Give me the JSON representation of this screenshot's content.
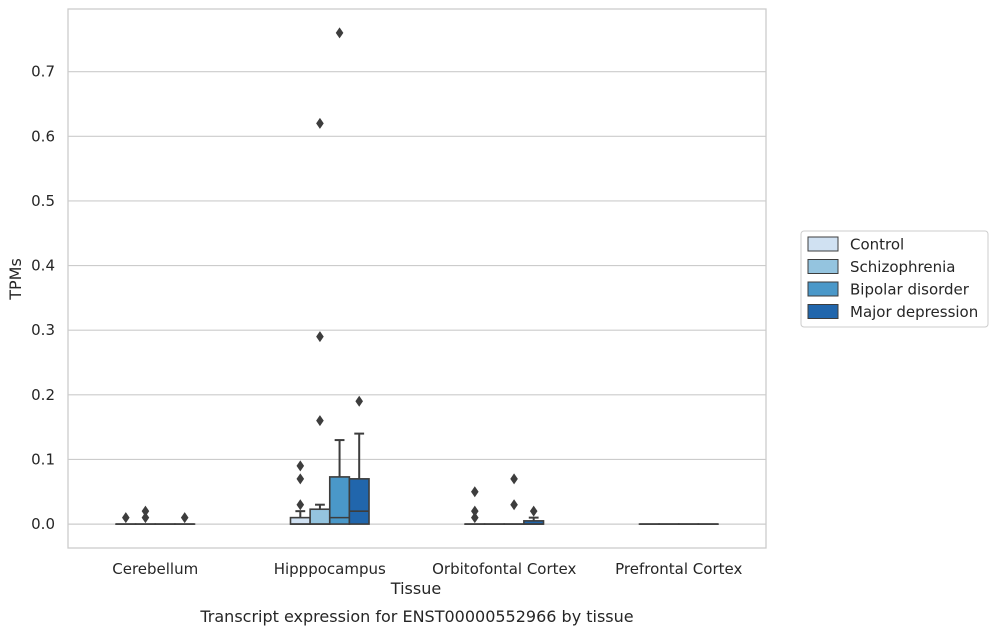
{
  "chart_data": {
    "type": "box",
    "title": "",
    "caption": "Transcript expression for ENST00000552966 by tissue",
    "xlabel": "Tissue",
    "ylabel": "TPMs",
    "ylim": [
      -0.037,
      0.797
    ],
    "yticks": [
      0.0,
      0.1,
      0.2,
      0.3,
      0.4,
      0.5,
      0.6,
      0.7
    ],
    "ytick_labels": [
      "0.0",
      "0.1",
      "0.2",
      "0.3",
      "0.4",
      "0.5",
      "0.6",
      "0.7"
    ],
    "grid": "horizontal",
    "legend_position": "right",
    "categories": [
      "Cerebellum",
      "Hipppocampus",
      "Orbitofontal Cortex",
      "Prefrontal Cortex"
    ],
    "series": [
      {
        "name": "Control",
        "color": "#d0e1f2",
        "boxes": [
          {
            "q1": 0,
            "median": 0,
            "q3": 0,
            "whisker_low": 0,
            "whisker_high": 0,
            "outliers": [
              0.01
            ]
          },
          {
            "q1": 0,
            "median": 0,
            "q3": 0.01,
            "whisker_low": 0,
            "whisker_high": 0.02,
            "outliers": [
              0.03,
              0.07,
              0.09
            ]
          },
          {
            "q1": 0,
            "median": 0,
            "q3": 0,
            "whisker_low": 0,
            "whisker_high": 0,
            "outliers": [
              0.01,
              0.02,
              0.05
            ]
          },
          {
            "q1": 0,
            "median": 0,
            "q3": 0,
            "whisker_low": 0,
            "whisker_high": 0,
            "outliers": []
          }
        ]
      },
      {
        "name": "Schizophrenia",
        "color": "#94c4df",
        "boxes": [
          {
            "q1": 0,
            "median": 0,
            "q3": 0,
            "whisker_low": 0,
            "whisker_high": 0,
            "outliers": [
              0.01,
              0.02
            ]
          },
          {
            "q1": 0,
            "median": 0.0,
            "q3": 0.023,
            "whisker_low": 0,
            "whisker_high": 0.03,
            "outliers": [
              0.16,
              0.29,
              0.62
            ]
          },
          {
            "q1": 0,
            "median": 0,
            "q3": 0,
            "whisker_low": 0,
            "whisker_high": 0,
            "outliers": []
          },
          {
            "q1": 0,
            "median": 0,
            "q3": 0,
            "whisker_low": 0,
            "whisker_high": 0,
            "outliers": []
          }
        ]
      },
      {
        "name": "Bipolar disorder",
        "color": "#4a98c9",
        "boxes": [
          {
            "q1": 0,
            "median": 0,
            "q3": 0,
            "whisker_low": 0,
            "whisker_high": 0,
            "outliers": []
          },
          {
            "q1": 0,
            "median": 0.01,
            "q3": 0.073,
            "whisker_low": 0,
            "whisker_high": 0.13,
            "outliers": [
              0.76
            ]
          },
          {
            "q1": 0,
            "median": 0,
            "q3": 0,
            "whisker_low": 0,
            "whisker_high": 0,
            "outliers": [
              0.03,
              0.07
            ]
          },
          {
            "q1": 0,
            "median": 0,
            "q3": 0,
            "whisker_low": 0,
            "whisker_high": 0,
            "outliers": []
          }
        ]
      },
      {
        "name": "Major depression",
        "color": "#2166ac",
        "boxes": [
          {
            "q1": 0,
            "median": 0,
            "q3": 0,
            "whisker_low": 0,
            "whisker_high": 0,
            "outliers": [
              0.01
            ]
          },
          {
            "q1": 0,
            "median": 0.02,
            "q3": 0.07,
            "whisker_low": 0,
            "whisker_high": 0.14,
            "outliers": [
              0.19
            ]
          },
          {
            "q1": 0,
            "median": 0,
            "q3": 0.005,
            "whisker_low": 0,
            "whisker_high": 0.01,
            "outliers": [
              0.02
            ]
          },
          {
            "q1": 0,
            "median": 0,
            "q3": 0,
            "whisker_low": 0,
            "whisker_high": 0,
            "outliers": []
          }
        ]
      }
    ]
  }
}
